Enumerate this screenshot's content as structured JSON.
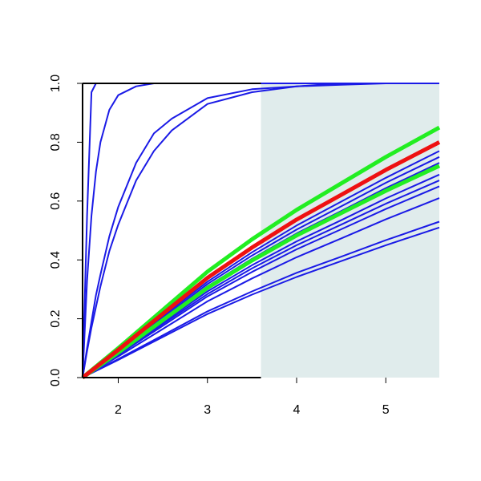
{
  "chart_data": {
    "type": "line",
    "xlim": [
      1.6,
      5.6
    ],
    "ylim": [
      0,
      1
    ],
    "xticks": [
      2,
      3,
      4,
      5
    ],
    "yticks": [
      {
        "value": 0,
        "label": "0.0"
      },
      {
        "value": 0.2,
        "label": "0.2"
      },
      {
        "value": 0.4,
        "label": "0.4"
      },
      {
        "value": 0.6,
        "label": "0.6"
      },
      {
        "value": 0.8,
        "label": "0.8"
      },
      {
        "value": 1,
        "label": "1.0"
      }
    ],
    "shaded_region": {
      "xlim": [
        3.6,
        5.6
      ],
      "color": "#e0ecec"
    },
    "series": [
      {
        "color": "#1a1ae6",
        "x": [
          1.6,
          1.65,
          1.7,
          1.75,
          1.8,
          1.9,
          2.0,
          2.2,
          2.4,
          2.6,
          3.0,
          3.5,
          4.0,
          4.5,
          5.0,
          5.6
        ],
        "values": [
          0,
          0.55,
          0.97,
          1,
          1,
          1,
          1,
          1,
          1,
          1,
          1,
          1,
          1,
          1,
          1,
          1
        ]
      },
      {
        "color": "#1a1ae6",
        "x": [
          1.6,
          1.65,
          1.7,
          1.75,
          1.8,
          1.9,
          2.0,
          2.2,
          2.4,
          2.6,
          3.0,
          3.5,
          4.0,
          4.5,
          5.0,
          5.6
        ],
        "values": [
          0,
          0.33,
          0.55,
          0.7,
          0.8,
          0.91,
          0.96,
          0.99,
          1,
          1,
          1,
          1,
          1,
          1,
          1,
          1
        ]
      },
      {
        "color": "#1a1ae6",
        "x": [
          1.6,
          1.65,
          1.7,
          1.75,
          1.8,
          1.9,
          2.0,
          2.2,
          2.4,
          2.6,
          3.0,
          3.5,
          4.0,
          4.5,
          5.0,
          5.6
        ],
        "values": [
          0,
          0.1,
          0.19,
          0.28,
          0.35,
          0.48,
          0.58,
          0.73,
          0.83,
          0.88,
          0.95,
          0.98,
          0.99,
          1,
          1,
          1
        ]
      },
      {
        "color": "#1a1ae6",
        "x": [
          1.6,
          1.65,
          1.7,
          1.75,
          1.8,
          1.9,
          2.0,
          2.2,
          2.4,
          2.6,
          3.0,
          3.5,
          4.0,
          4.5,
          5.0,
          5.6
        ],
        "values": [
          0,
          0.09,
          0.17,
          0.24,
          0.31,
          0.43,
          0.52,
          0.67,
          0.77,
          0.84,
          0.93,
          0.97,
          0.99,
          0.995,
          1,
          1
        ]
      },
      {
        "color": "#1a1ae6",
        "x": [
          1.6,
          2.0,
          2.5,
          3.0,
          3.5,
          4.0,
          4.5,
          5.0,
          5.6
        ],
        "values": [
          0,
          0.091,
          0.209,
          0.326,
          0.426,
          0.517,
          0.598,
          0.679,
          0.77
        ]
      },
      {
        "color": "#1a1ae6",
        "x": [
          1.6,
          2.0,
          2.5,
          3.0,
          3.5,
          4.0,
          4.5,
          5.0,
          5.6
        ],
        "values": [
          0,
          0.089,
          0.203,
          0.318,
          0.415,
          0.503,
          0.582,
          0.662,
          0.75
        ]
      },
      {
        "color": "#1a1ae6",
        "x": [
          1.6,
          2.0,
          2.5,
          3.0,
          3.5,
          4.0,
          4.5,
          5.0,
          5.6
        ],
        "values": [
          0,
          0.086,
          0.198,
          0.31,
          0.404,
          0.49,
          0.566,
          0.644,
          0.73
        ]
      },
      {
        "color": "#1a1ae6",
        "x": [
          1.6,
          2.0,
          2.5,
          3.0,
          3.5,
          4.0,
          4.5,
          5.0,
          5.6
        ],
        "values": [
          0,
          0.081,
          0.187,
          0.293,
          0.382,
          0.463,
          0.535,
          0.609,
          0.69
        ]
      },
      {
        "color": "#1a1ae6",
        "x": [
          1.6,
          2.0,
          2.5,
          3.0,
          3.5,
          4.0,
          4.5,
          5.0,
          5.6
        ],
        "values": [
          0,
          0.079,
          0.182,
          0.284,
          0.371,
          0.45,
          0.52,
          0.591,
          0.67
        ]
      },
      {
        "color": "#1a1ae6",
        "x": [
          1.6,
          2.0,
          2.5,
          3.0,
          3.5,
          4.0,
          4.5,
          5.0,
          5.6
        ],
        "values": [
          0,
          0.077,
          0.176,
          0.276,
          0.359,
          0.436,
          0.504,
          0.573,
          0.65
        ]
      },
      {
        "color": "#1a1ae6",
        "x": [
          1.6,
          2.0,
          2.5,
          3.0,
          3.5,
          4.0,
          4.5,
          5.0,
          5.6
        ],
        "values": [
          0,
          0.072,
          0.165,
          0.259,
          0.337,
          0.409,
          0.473,
          0.538,
          0.61
        ]
      },
      {
        "color": "#1a1ae6",
        "x": [
          1.6,
          2.0,
          2.5,
          3.0,
          3.5,
          4.0,
          4.5,
          5.0,
          5.6
        ],
        "values": [
          0,
          0.063,
          0.144,
          0.225,
          0.293,
          0.356,
          0.411,
          0.467,
          0.53
        ]
      },
      {
        "color": "#1a1ae6",
        "x": [
          1.6,
          2.0,
          2.5,
          3.0,
          3.5,
          4.0,
          4.5,
          5.0,
          5.6
        ],
        "values": [
          0,
          0.06,
          0.138,
          0.216,
          0.282,
          0.342,
          0.396,
          0.45,
          0.51
        ]
      },
      {
        "color": "#22ee22",
        "x": [
          1.6,
          2.0,
          2.5,
          3.0,
          3.5,
          4.0,
          4.5,
          5.0,
          5.6
        ],
        "values": [
          0,
          0.085,
          0.195,
          0.305,
          0.398,
          0.483,
          0.559,
          0.635,
          0.72
        ]
      },
      {
        "color": "#22ee22",
        "x": [
          1.6,
          2.0,
          2.5,
          3.0,
          3.5,
          4.0,
          4.5,
          5.0,
          5.6
        ],
        "values": [
          0,
          0.1,
          0.23,
          0.36,
          0.47,
          0.57,
          0.66,
          0.75,
          0.85
        ]
      },
      {
        "color": "#ee1111",
        "x": [
          1.6,
          2.0,
          2.5,
          3.0,
          3.5,
          4.0,
          4.5,
          5.0,
          5.6
        ],
        "values": [
          0,
          0.094,
          0.217,
          0.339,
          0.442,
          0.537,
          0.621,
          0.706,
          0.8
        ]
      }
    ]
  }
}
